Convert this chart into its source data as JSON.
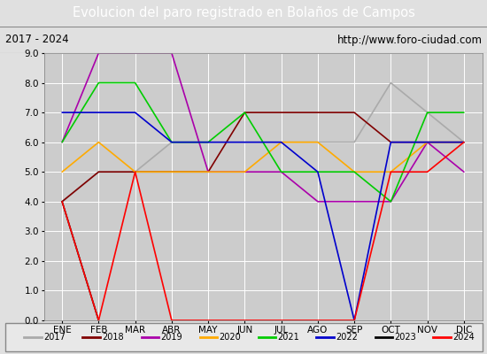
{
  "title": "Evolucion del paro registrado en Bolaños de Campos",
  "subtitle_left": "2017 - 2024",
  "subtitle_right": "http://www.foro-ciudad.com",
  "months": [
    "ENE",
    "FEB",
    "MAR",
    "ABR",
    "MAY",
    "JUN",
    "JUL",
    "AGO",
    "SEP",
    "OCT",
    "NOV",
    "DIC"
  ],
  "ylim": [
    0.0,
    9.0
  ],
  "yticks": [
    0.0,
    1.0,
    2.0,
    3.0,
    4.0,
    5.0,
    6.0,
    7.0,
    8.0,
    9.0
  ],
  "series": {
    "2017": {
      "color": "#aaaaaa",
      "data": [
        4.0,
        5.0,
        5.0,
        6.0,
        6.0,
        6.0,
        6.0,
        6.0,
        6.0,
        8.0,
        7.0,
        6.0
      ]
    },
    "2018": {
      "color": "#800000",
      "data": [
        4.0,
        5.0,
        5.0,
        5.0,
        5.0,
        7.0,
        7.0,
        7.0,
        7.0,
        6.0,
        6.0,
        6.0
      ]
    },
    "2019": {
      "color": "#aa00aa",
      "data": [
        6.0,
        9.0,
        9.0,
        9.0,
        5.0,
        5.0,
        5.0,
        4.0,
        4.0,
        4.0,
        6.0,
        5.0
      ]
    },
    "2020": {
      "color": "#ffaa00",
      "data": [
        5.0,
        6.0,
        5.0,
        5.0,
        5.0,
        5.0,
        6.0,
        6.0,
        5.0,
        5.0,
        6.0,
        6.0
      ]
    },
    "2021": {
      "color": "#00cc00",
      "data": [
        6.0,
        8.0,
        8.0,
        6.0,
        6.0,
        7.0,
        5.0,
        5.0,
        5.0,
        4.0,
        7.0,
        7.0
      ]
    },
    "2022": {
      "color": "#0000cc",
      "data": [
        7.0,
        7.0,
        7.0,
        6.0,
        6.0,
        6.0,
        6.0,
        5.0,
        0.0,
        6.0,
        6.0,
        6.0
      ]
    },
    "2023": {
      "color": "#000000",
      "data": [
        4.0,
        0.0,
        null,
        null,
        null,
        null,
        null,
        null,
        null,
        null,
        null,
        null
      ]
    },
    "2024": {
      "color": "#ff0000",
      "data": [
        4.0,
        0.0,
        5.0,
        0.0,
        null,
        null,
        null,
        null,
        0.0,
        5.0,
        5.0,
        6.0
      ]
    }
  },
  "legend_order": [
    "2017",
    "2018",
    "2019",
    "2020",
    "2021",
    "2022",
    "2023",
    "2024"
  ],
  "bg_color": "#e0e0e0",
  "plot_bg_color": "#cccccc",
  "title_bg_color": "#4466bb",
  "title_text_color": "#ffffff",
  "subtitle_bg_color": "#d8d8d8",
  "grid_color": "#ffffff",
  "legend_bg_color": "#e8e8e8",
  "legend_border_color": "#888888"
}
